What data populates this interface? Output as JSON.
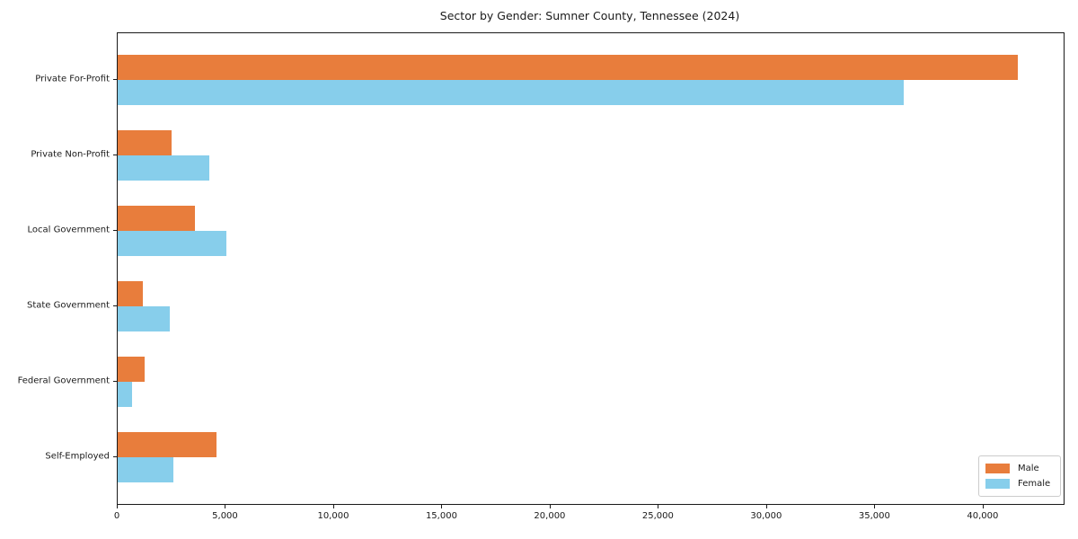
{
  "chart_data": {
    "type": "bar",
    "orientation": "horizontal",
    "title": "Sector by Gender: Sumner County, Tennessee (2024)",
    "categories": [
      "Private For-Profit",
      "Private Non-Profit",
      "Local Government",
      "State Government",
      "Federal Government",
      "Self-Employed"
    ],
    "series": [
      {
        "name": "Male",
        "color": "#E87D3C",
        "values": [
          41600,
          2500,
          3560,
          1150,
          1250,
          4550
        ]
      },
      {
        "name": "Female",
        "color": "#87CEEB",
        "values": [
          36300,
          4250,
          5000,
          2400,
          650,
          2580
        ]
      }
    ],
    "xlabel": "",
    "ylabel": "",
    "xlim": [
      0,
      43700
    ],
    "xticks": [
      0,
      5000,
      10000,
      15000,
      20000,
      25000,
      30000,
      35000,
      40000
    ],
    "xtick_labels": [
      "0",
      "5,000",
      "10,000",
      "15,000",
      "20,000",
      "25,000",
      "30,000",
      "35,000",
      "40,000"
    ],
    "grid": false,
    "legend": {
      "position": "lower right"
    },
    "frame_color": "#1a1a1a",
    "background_color": "#ffffff"
  }
}
